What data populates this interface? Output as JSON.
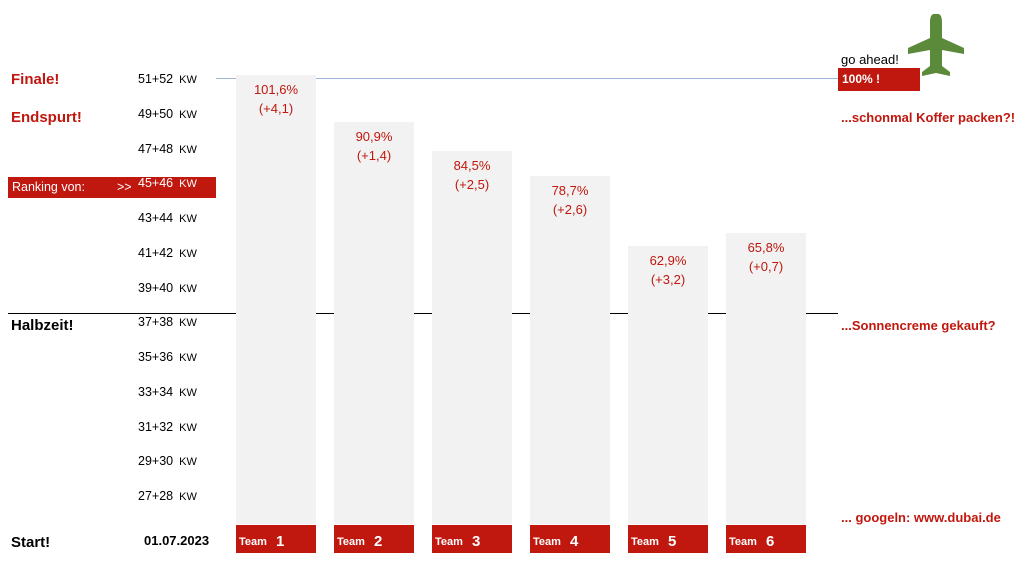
{
  "left_labels": {
    "finale": "Finale!",
    "endspurt": "Endspurt!",
    "ranking": "Ranking von:",
    "ranking_arrow": ">>",
    "halbzeit": "Halbzeit!",
    "start": "Start!",
    "start_date": "01.07.2023"
  },
  "right_labels": {
    "go_ahead": "go ahead!",
    "hundred": "100% !",
    "koffer": "...schonmal Koffer packen?!",
    "sonnencreme": "...Sonnencreme gekauft?",
    "googeln": "... googeln:  www.dubai.de"
  },
  "week_unit": "KW",
  "colors": {
    "accent": "#c0170e",
    "bar": "#f2f2f2",
    "plane": "#5a8a3a",
    "target_line": "#9fb8d8"
  },
  "icons": {
    "plane": "airplane-icon"
  },
  "chart_data": {
    "type": "bar",
    "y_ticks": [
      "27+28",
      "29+30",
      "31+32",
      "33+34",
      "35+36",
      "37+38",
      "39+40",
      "41+42",
      "43+44",
      "45+46",
      "47+48",
      "49+50",
      "51+52"
    ],
    "current_period": "45+46",
    "categories": [
      "Team 1",
      "Team 2",
      "Team 3",
      "Team 4",
      "Team 5",
      "Team 6"
    ],
    "team_words": [
      "Team",
      "Team",
      "Team",
      "Team",
      "Team",
      "Team"
    ],
    "team_numbers": [
      "1",
      "2",
      "3",
      "4",
      "5",
      "6"
    ],
    "values": [
      101.6,
      90.9,
      84.5,
      78.7,
      62.9,
      65.8
    ],
    "value_labels": [
      "101,6%",
      "90,9%",
      "84,5%",
      "78,7%",
      "62,9%",
      "65,8%"
    ],
    "change_labels": [
      "(+4,1)",
      "(+1,4)",
      "(+2,5)",
      "(+2,6)",
      "(+3,2)",
      "(+0,7)"
    ],
    "target": 100,
    "halfway": 50
  }
}
